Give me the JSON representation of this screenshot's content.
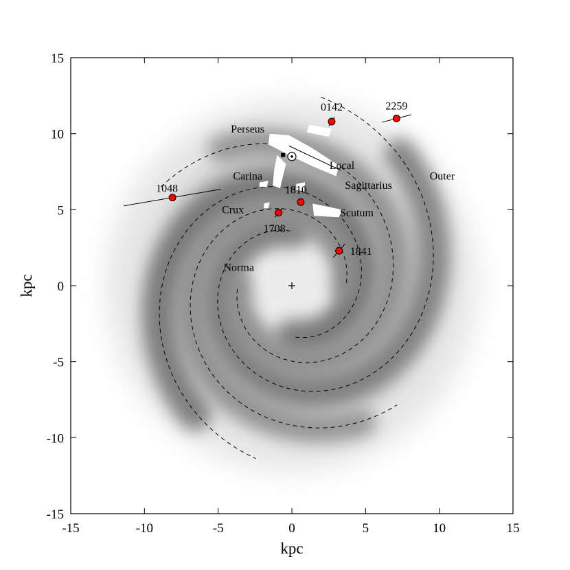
{
  "chart_data": {
    "type": "scatter",
    "xlabel": "kpc",
    "ylabel": "kpc",
    "xlim": [
      -15,
      15
    ],
    "ylim": [
      -15,
      15
    ],
    "xticks": [
      "-15",
      "-10",
      "-5",
      "0",
      "5",
      "10",
      "15"
    ],
    "yticks": [
      "-15",
      "-10",
      "-5",
      "0",
      "5",
      "10",
      "15"
    ],
    "grid": false,
    "background": "grayscale spiral-arm density map",
    "galactic_center": [
      0,
      0
    ],
    "sun_position": [
      0,
      8.5
    ],
    "arm_labels": [
      {
        "name": "Perseus",
        "x": -3.0,
        "y": 10.3
      },
      {
        "name": "Local",
        "x": 3.4,
        "y": 7.9
      },
      {
        "name": "Carina",
        "x": -3.0,
        "y": 7.2
      },
      {
        "name": "Sagittarius",
        "x": 5.2,
        "y": 6.6
      },
      {
        "name": "Outer",
        "x": 10.2,
        "y": 7.2
      },
      {
        "name": "Crux",
        "x": -4.0,
        "y": 5.0
      },
      {
        "name": "Scutum",
        "x": 4.4,
        "y": 4.8
      },
      {
        "name": "Norma",
        "x": -3.6,
        "y": 1.2
      }
    ],
    "sources": [
      {
        "name": "0142",
        "x": 2.7,
        "y": 10.8,
        "error_dx": 0.2,
        "error_dy": 0.6,
        "color": "#ff0000"
      },
      {
        "name": "2259",
        "x": 7.1,
        "y": 11.0,
        "error_dx": 1.0,
        "error_dy": 0.5,
        "color": "#ff0000"
      },
      {
        "name": "1048",
        "x": -8.1,
        "y": 5.8,
        "error_dx": 3.3,
        "error_dy": 1.1,
        "color": "#ff0000"
      },
      {
        "name": "1810",
        "x": 0.6,
        "y": 5.5,
        "error_dx": 0.15,
        "error_dy": 0.4,
        "color": "#ff0000"
      },
      {
        "name": "1708",
        "x": -0.9,
        "y": 4.8,
        "error_dx": 0.25,
        "error_dy": 0.6,
        "color": "#ff0000"
      },
      {
        "name": "1841",
        "x": 3.2,
        "y": 2.3,
        "error_dx": 0.4,
        "error_dy": 0.9,
        "color": "#ff0000"
      }
    ],
    "source_label_text": [
      "0142",
      "2259",
      "1048",
      "1810",
      "1708",
      "1841"
    ],
    "colors": {
      "markers": "#ff0000",
      "dashed_arms": "#000000",
      "local_clouds": "#ffffff"
    }
  }
}
